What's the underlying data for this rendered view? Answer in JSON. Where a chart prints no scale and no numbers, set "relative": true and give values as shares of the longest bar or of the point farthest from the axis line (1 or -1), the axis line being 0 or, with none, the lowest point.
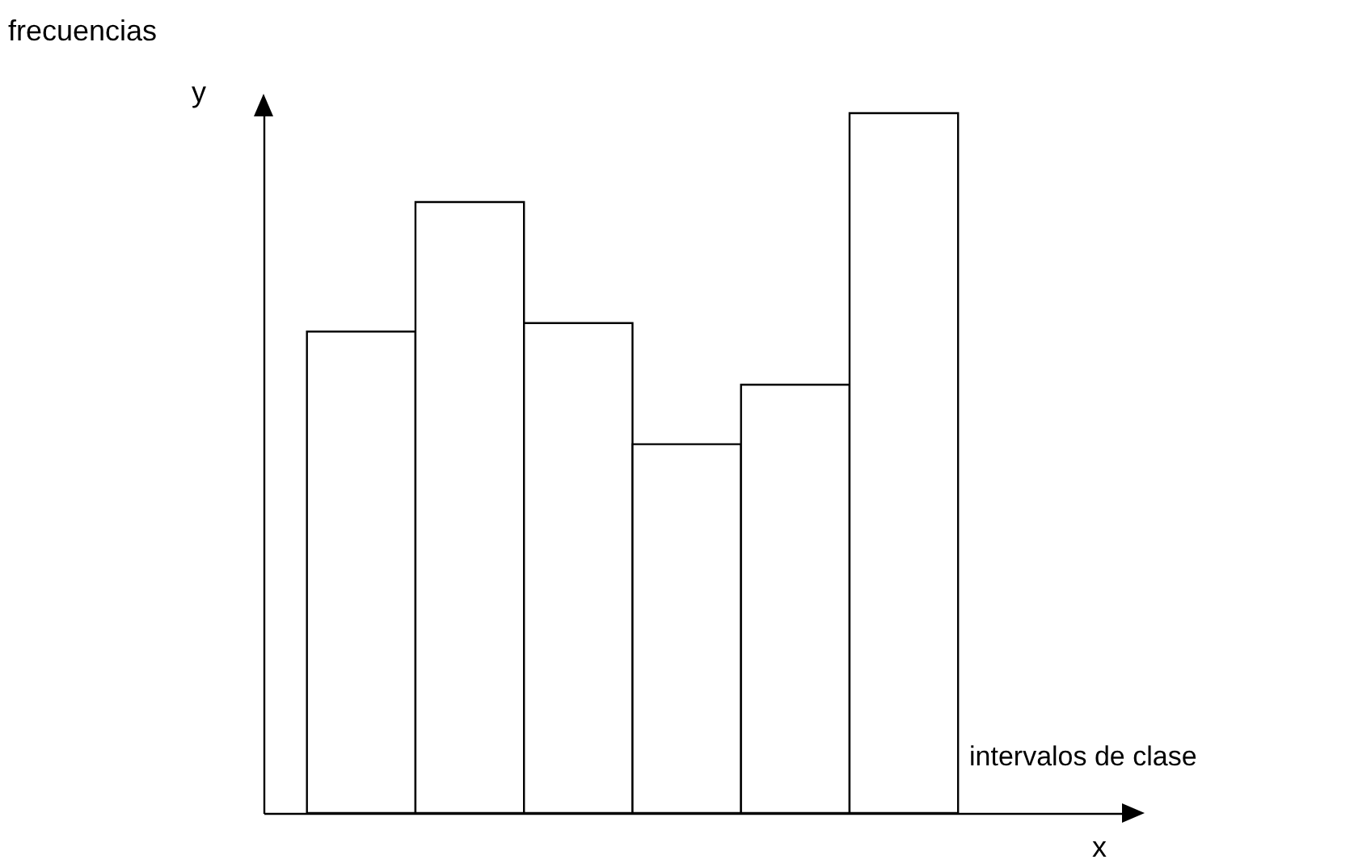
{
  "chart_data": {
    "type": "bar",
    "relative": true,
    "xlabel": "intervalos de clase",
    "annotations": [
      "frecuencias",
      "y",
      "x"
    ],
    "categories": [
      null,
      null,
      null,
      null,
      null,
      null
    ],
    "values": [
      0.688,
      0.873,
      0.7,
      0.527,
      0.612,
      1
    ],
    "color": "#ffffff"
  }
}
